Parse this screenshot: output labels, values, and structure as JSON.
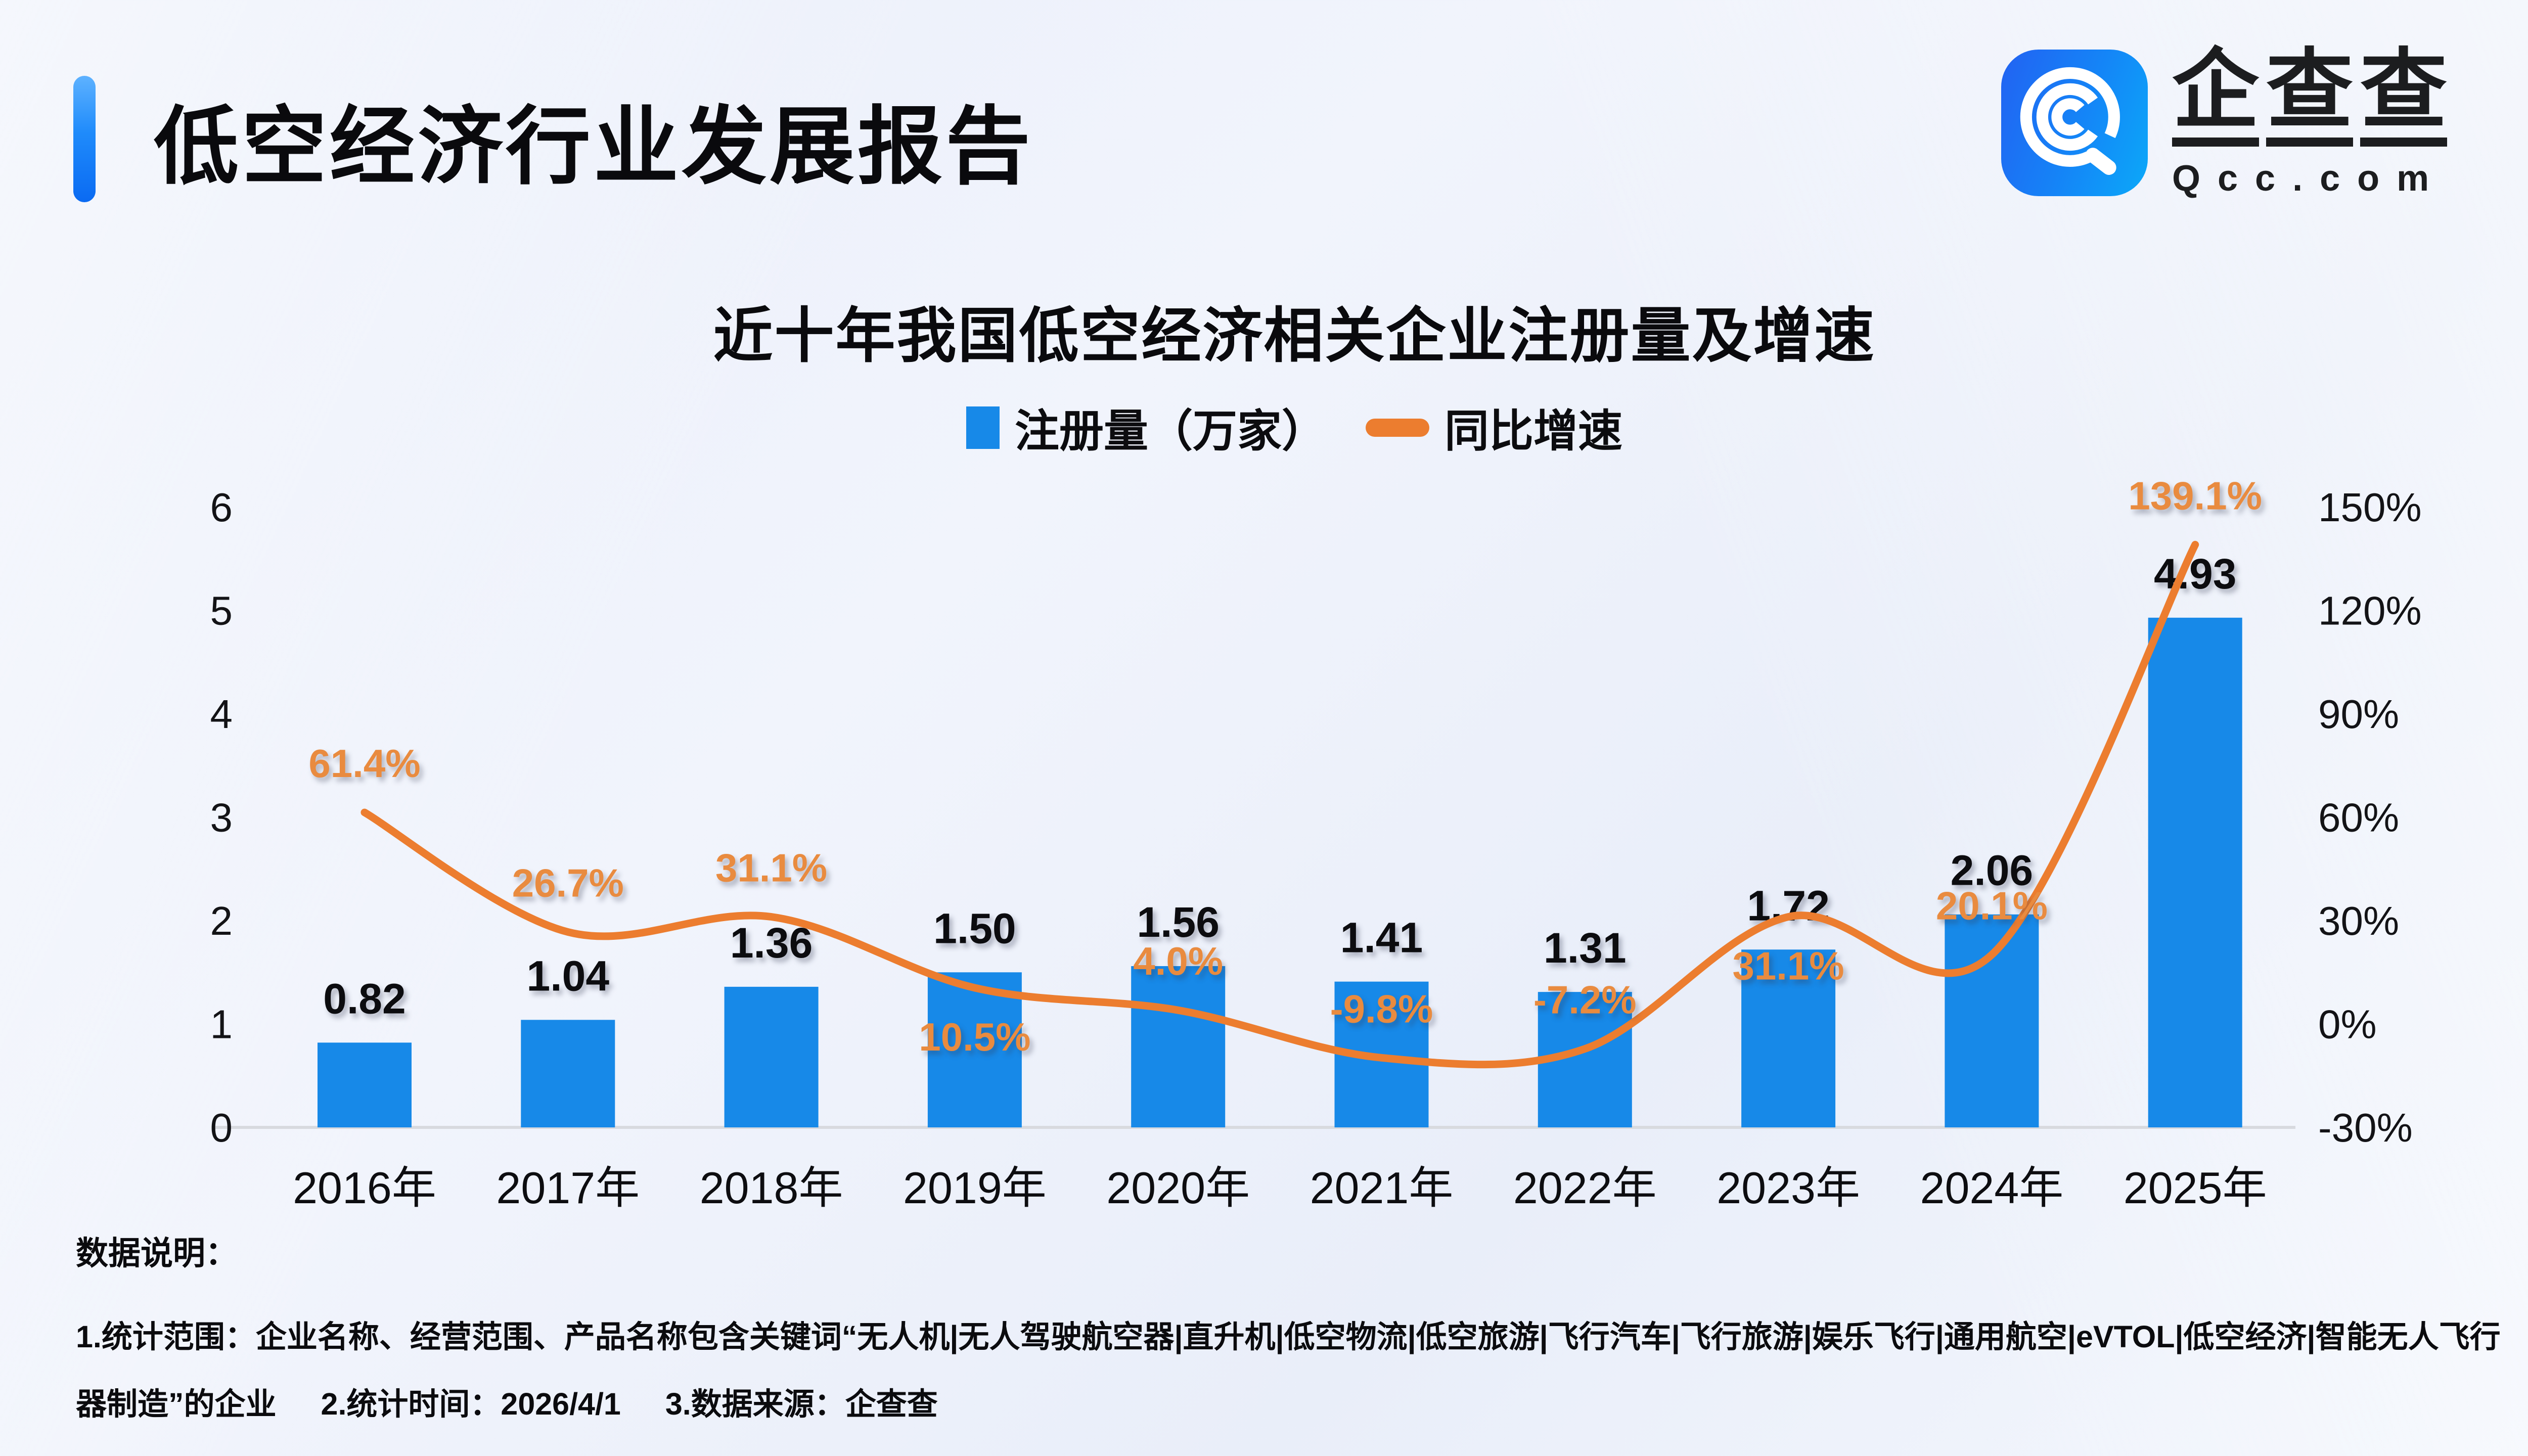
{
  "header": {
    "title": "低空经济行业发展报告"
  },
  "logo": {
    "name_cn": "企查查",
    "name_cn_chars": [
      "企",
      "查",
      "查"
    ],
    "domain": "Qcc.com"
  },
  "chart": {
    "title": "近十年我国低空经济相关企业注册量及增速",
    "legend": [
      {
        "label": "注册量（万家）",
        "type": "bar",
        "color": "#1789E8"
      },
      {
        "label": "同比增速",
        "type": "line",
        "color": "#EC7D2F"
      }
    ]
  },
  "chart_data": {
    "type": "bar+line combo",
    "title": "近十年我国低空经济相关企业注册量及增速",
    "categories": [
      "2016年",
      "2017年",
      "2018年",
      "2019年",
      "2020年",
      "2021年",
      "2022年",
      "2023年",
      "2024年",
      "2025年"
    ],
    "series": [
      {
        "name": "注册量（万家）",
        "type": "bar",
        "axis": "left",
        "color": "#1789E8",
        "values": [
          0.82,
          1.04,
          1.36,
          1.5,
          1.56,
          1.41,
          1.31,
          1.72,
          2.06,
          4.93
        ],
        "labels": [
          "0.82",
          "1.04",
          "1.36",
          "1.50",
          "1.56",
          "1.41",
          "1.31",
          "1.72",
          "2.06",
          "4.93"
        ]
      },
      {
        "name": "同比增速",
        "type": "line",
        "axis": "right",
        "color": "#EC7D2F",
        "label_color": "#E98B3F",
        "values": [
          61.4,
          26.7,
          31.1,
          10.5,
          4.0,
          -9.8,
          -7.2,
          31.1,
          20.1,
          139.1
        ],
        "labels": [
          "61.4%",
          "26.7%",
          "31.1%",
          "10.5%",
          "4.0%",
          "-9.8%",
          "-7.2%",
          "31.1%",
          "20.1%",
          "139.1%"
        ],
        "label_side": [
          "above",
          "above",
          "above",
          "below",
          "above",
          "above",
          "above",
          "below",
          "above",
          "above"
        ]
      }
    ],
    "left_axis": {
      "min": 0,
      "max": 6,
      "step": 1,
      "ticks": [
        "0",
        "1",
        "2",
        "3",
        "4",
        "5",
        "6"
      ]
    },
    "right_axis": {
      "min": -30,
      "max": 150,
      "step": 30,
      "ticks": [
        "-30%",
        "0%",
        "30%",
        "60%",
        "90%",
        "120%",
        "150%"
      ]
    },
    "grid": false,
    "legend_position": "top",
    "axis_line_color": "#D8DADF"
  },
  "footnotes": {
    "heading": "数据说明：",
    "notes": [
      "1.统计范围：企业名称、经营范围、产品名称包含关键词“无人机|无人驾驶航空器|直升机|低空物流|低空旅游|飞行汽车|飞行旅游|娱乐飞行|通用航空|eVTOL|低空经济|智能无人飞行器制造”的企业",
      "2.统计时间：2026/4/1",
      "3.数据来源：企查查"
    ]
  }
}
